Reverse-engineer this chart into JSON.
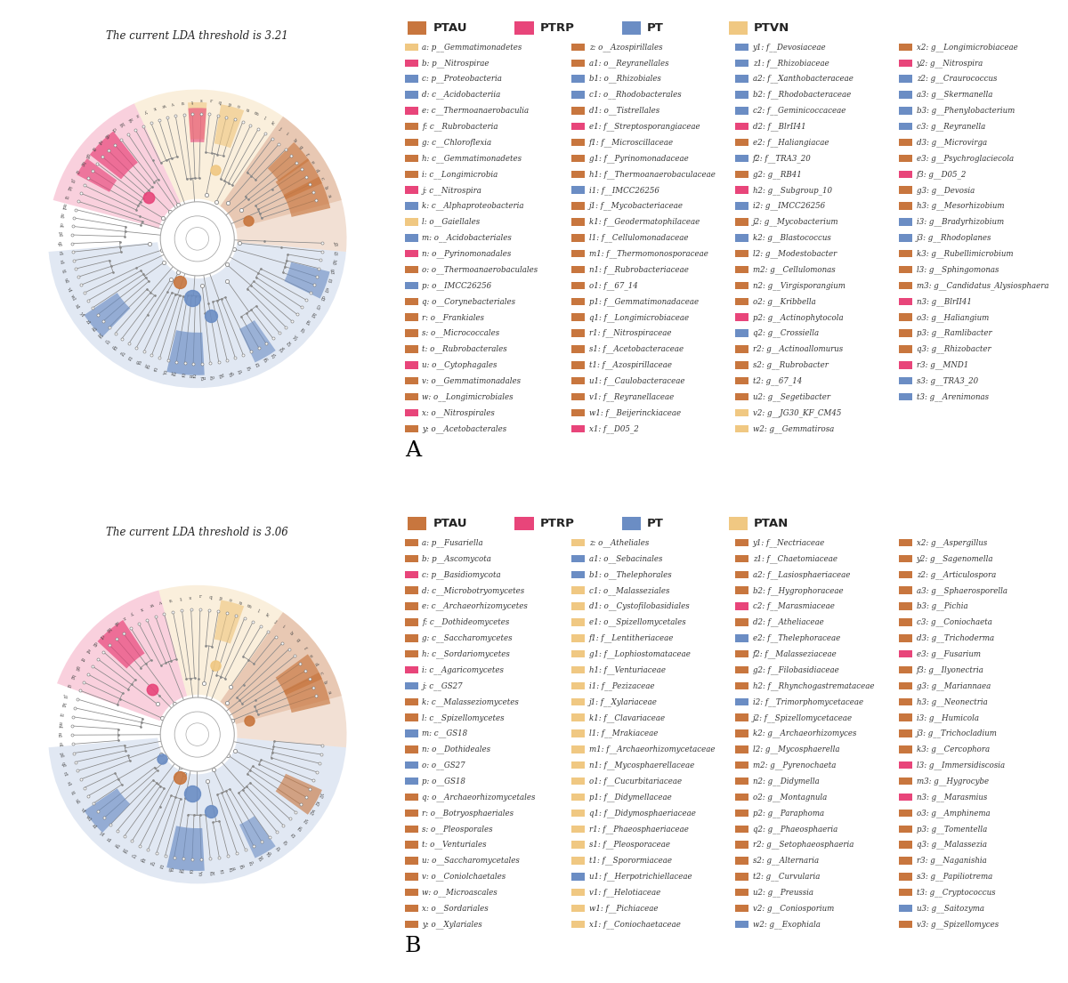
{
  "panel_A_title": "The current LDA threshold is 3.21",
  "panel_B_title": "The current LDA threshold is 3.06",
  "legend_A": {
    "groups": [
      "PTAU",
      "PTRP",
      "PT",
      "PTVN"
    ],
    "colors": [
      "#C8763E",
      "#E8457A",
      "#6B8DC4",
      "#F0C882"
    ],
    "col1": [
      [
        "#F0C882",
        "a: p__Gemmatimonadetes"
      ],
      [
        "#E8457A",
        "b: p__Nitrospirae"
      ],
      [
        "#6B8DC4",
        "c: p__Proteobacteria"
      ],
      [
        "#6B8DC4",
        "d: c__Acidobacteriia"
      ],
      [
        "#E8457A",
        "e: c__Thermoanaerobaculia"
      ],
      [
        "#C8763E",
        "f: c__Rubrobacteria"
      ],
      [
        "#C8763E",
        "g: c__Chloroflexia"
      ],
      [
        "#C8763E",
        "h: c__Gemmatimonadetes"
      ],
      [
        "#C8763E",
        "i: c__Longimicrobia"
      ],
      [
        "#E8457A",
        "j: c__Nitrospira"
      ],
      [
        "#6B8DC4",
        "k: c__Alphaproteobacteria"
      ],
      [
        "#F0C882",
        "l: o__Gaiellales"
      ],
      [
        "#6B8DC4",
        "m: o__Acidobacteriales"
      ],
      [
        "#E8457A",
        "n: o__Pyrinomonadales"
      ],
      [
        "#C8763E",
        "o: o__Thermoanaerobaculales"
      ],
      [
        "#6B8DC4",
        "p: o__IMCC26256"
      ],
      [
        "#C8763E",
        "q: o__Corynebacteriales"
      ],
      [
        "#C8763E",
        "r: o__Frankiales"
      ],
      [
        "#C8763E",
        "s: o__Micrococcales"
      ],
      [
        "#C8763E",
        "t: o__Rubrobacterales"
      ],
      [
        "#E8457A",
        "u: o__Cytophagales"
      ],
      [
        "#C8763E",
        "v: o__Gemmatimonadales"
      ],
      [
        "#C8763E",
        "w: o__Longimicrobiales"
      ],
      [
        "#E8457A",
        "x: o__Nitrospirales"
      ],
      [
        "#C8763E",
        "y: o__Acetobacterales"
      ]
    ],
    "col2": [
      [
        "#C8763E",
        "z: o__Azospirillales"
      ],
      [
        "#C8763E",
        "a1: o__Reyranellales"
      ],
      [
        "#6B8DC4",
        "b1: o__Rhizobiales"
      ],
      [
        "#6B8DC4",
        "c1: o__Rhodobacterales"
      ],
      [
        "#C8763E",
        "d1: o__Tistrellales"
      ],
      [
        "#E8457A",
        "e1: f__Streptosporangiaceae"
      ],
      [
        "#C8763E",
        "f1: f__Microscillaceae"
      ],
      [
        "#C8763E",
        "g1: f__Pyrinomonadaceae"
      ],
      [
        "#C8763E",
        "h1: f__Thermoanaerobaculaceae"
      ],
      [
        "#6B8DC4",
        "i1: f__IMCC26256"
      ],
      [
        "#C8763E",
        "j1: f__Mycobacteriaceae"
      ],
      [
        "#C8763E",
        "k1: f__Geodermatophilaceae"
      ],
      [
        "#C8763E",
        "l1: f__Cellulomonadaceae"
      ],
      [
        "#C8763E",
        "m1: f__Thermomonosporaceae"
      ],
      [
        "#C8763E",
        "n1: f__Rubrobacteriaceae"
      ],
      [
        "#C8763E",
        "o1: f__67_14"
      ],
      [
        "#C8763E",
        "p1: f__Gemmatimonadaceae"
      ],
      [
        "#C8763E",
        "q1: f__Longimicrobiaceae"
      ],
      [
        "#C8763E",
        "r1: f__Nitrospiraceae"
      ],
      [
        "#C8763E",
        "s1: f__Acetobacteraceae"
      ],
      [
        "#C8763E",
        "t1: f__Azospirillaceae"
      ],
      [
        "#C8763E",
        "u1: f__Caulobacteraceae"
      ],
      [
        "#C8763E",
        "v1: f__Reyranellaceae"
      ],
      [
        "#C8763E",
        "w1: f__Beijerinckiaceae"
      ],
      [
        "#E8457A",
        "x1: f__D05_2"
      ]
    ],
    "col3": [
      [
        "#6B8DC4",
        "y1: f__Devosiaceae"
      ],
      [
        "#6B8DC4",
        "z1: f__Rhizobiaceae"
      ],
      [
        "#6B8DC4",
        "a2: f__Xanthobacteraceae"
      ],
      [
        "#6B8DC4",
        "b2: f__Rhodobacteraceae"
      ],
      [
        "#6B8DC4",
        "c2: f__Geminicoccaceae"
      ],
      [
        "#E8457A",
        "d2: f__BlrII41"
      ],
      [
        "#C8763E",
        "e2: f__Haliangiacae"
      ],
      [
        "#6B8DC4",
        "f2: f__TRA3_20"
      ],
      [
        "#C8763E",
        "g2: g__RB41"
      ],
      [
        "#E8457A",
        "h2: g__Subgroup_10"
      ],
      [
        "#6B8DC4",
        "i2: g__IMCC26256"
      ],
      [
        "#C8763E",
        "j2: g__Mycobacterium"
      ],
      [
        "#6B8DC4",
        "k2: g__Blastococcus"
      ],
      [
        "#C8763E",
        "l2: g__Modestobacter"
      ],
      [
        "#C8763E",
        "m2: g__Cellulomonas"
      ],
      [
        "#C8763E",
        "n2: g__Virgisporangium"
      ],
      [
        "#C8763E",
        "o2: g__Kribbella"
      ],
      [
        "#E8457A",
        "p2: g__Actinophytocola"
      ],
      [
        "#6B8DC4",
        "q2: g__Crossiella"
      ],
      [
        "#C8763E",
        "r2: g__Actinoallomurus"
      ],
      [
        "#C8763E",
        "s2: g__Rubrobacter"
      ],
      [
        "#C8763E",
        "t2: g__67_14"
      ],
      [
        "#C8763E",
        "u2: g__Segetibacter"
      ],
      [
        "#F0C882",
        "v2: g__JG30_KF_CM45"
      ],
      [
        "#F0C882",
        "w2: g__Gemmatirosa"
      ]
    ],
    "col4": [
      [
        "#C8763E",
        "x2: g__Longimicrobiaceae"
      ],
      [
        "#E8457A",
        "y2: g__Nitrospira"
      ],
      [
        "#6B8DC4",
        "z2: g__Craurococcus"
      ],
      [
        "#6B8DC4",
        "a3: g__Skermanella"
      ],
      [
        "#6B8DC4",
        "b3: g__Phenylobacterium"
      ],
      [
        "#6B8DC4",
        "c3: g__Reyranella"
      ],
      [
        "#C8763E",
        "d3: g__Microvirga"
      ],
      [
        "#C8763E",
        "e3: g__Psychroglaciecola"
      ],
      [
        "#E8457A",
        "f3: g__D05_2"
      ],
      [
        "#C8763E",
        "g3: g__Devosia"
      ],
      [
        "#C8763E",
        "h3: g__Mesorhizobium"
      ],
      [
        "#6B8DC4",
        "i3: g__Bradyrhizobium"
      ],
      [
        "#6B8DC4",
        "j3: g__Rhodoplanes"
      ],
      [
        "#C8763E",
        "k3: g__Rubellimicrobium"
      ],
      [
        "#C8763E",
        "l3: g__Sphingomonas"
      ],
      [
        "#C8763E",
        "m3: g__Candidatus_Alysiosphaera"
      ],
      [
        "#E8457A",
        "n3: g__BlrII41"
      ],
      [
        "#C8763E",
        "o3: g__Haliangium"
      ],
      [
        "#C8763E",
        "p3: g__Ramlibacter"
      ],
      [
        "#C8763E",
        "q3: g__Rhizobacter"
      ],
      [
        "#E8457A",
        "r3: g__MND1"
      ],
      [
        "#6B8DC4",
        "s3: g__TRA3_20"
      ],
      [
        "#6B8DC4",
        "t3: g__Arenimonas"
      ]
    ]
  },
  "legend_B": {
    "groups": [
      "PTAU",
      "PTRP",
      "PT",
      "PTAN"
    ],
    "colors": [
      "#C8763E",
      "#E8457A",
      "#6B8DC4",
      "#F0C882"
    ],
    "col1": [
      [
        "#C8763E",
        "a: p__Fusariella"
      ],
      [
        "#C8763E",
        "b: p__Ascomycota"
      ],
      [
        "#E8457A",
        "c: p__Basidiomycota"
      ],
      [
        "#C8763E",
        "d: c__Microbotryomycetes"
      ],
      [
        "#C8763E",
        "e: c__Archaeorhizomycetes"
      ],
      [
        "#C8763E",
        "f: c__Dothideomycetes"
      ],
      [
        "#C8763E",
        "g: c__Saccharomycetes"
      ],
      [
        "#C8763E",
        "h: c__Sordariomycetes"
      ],
      [
        "#E8457A",
        "i: c__Agaricomycetes"
      ],
      [
        "#6B8DC4",
        "j: c__GS27"
      ],
      [
        "#C8763E",
        "k: c__Malasseziomycetes"
      ],
      [
        "#C8763E",
        "l: c__Spizellomycetes"
      ],
      [
        "#6B8DC4",
        "m: c__GS18"
      ],
      [
        "#C8763E",
        "n: o__Dothideales"
      ],
      [
        "#6B8DC4",
        "o: o__GS27"
      ],
      [
        "#6B8DC4",
        "p: o__GS18"
      ],
      [
        "#C8763E",
        "q: o__Archaeorhizomycetales"
      ],
      [
        "#C8763E",
        "r: o__Botryosphaeriales"
      ],
      [
        "#C8763E",
        "s: o__Pleosporales"
      ],
      [
        "#C8763E",
        "t: o__Venturiales"
      ],
      [
        "#C8763E",
        "u: o__Saccharomycetales"
      ],
      [
        "#C8763E",
        "v: o__Coniolchaetales"
      ],
      [
        "#C8763E",
        "w: o__Microascales"
      ],
      [
        "#C8763E",
        "x: o__Sordariales"
      ],
      [
        "#C8763E",
        "y: o__Xylariales"
      ]
    ],
    "col2": [
      [
        "#F0C882",
        "z: o__Atheliales"
      ],
      [
        "#6B8DC4",
        "a1: o__Sebacinales"
      ],
      [
        "#6B8DC4",
        "b1: o__Thelephorales"
      ],
      [
        "#F0C882",
        "c1: o__Malasseziales"
      ],
      [
        "#F0C882",
        "d1: o__Cystofilobasidiales"
      ],
      [
        "#F0C882",
        "e1: o__Spizellomycetales"
      ],
      [
        "#F0C882",
        "f1: f__Lentitheriaceae"
      ],
      [
        "#F0C882",
        "g1: f__Lophiostomataceae"
      ],
      [
        "#F0C882",
        "h1: f__Venturiaceae"
      ],
      [
        "#F0C882",
        "i1: f__Pezizaceae"
      ],
      [
        "#F0C882",
        "j1: f__Xylariaceae"
      ],
      [
        "#F0C882",
        "k1: f__Clavariaceae"
      ],
      [
        "#F0C882",
        "l1: f__Mrakiaceae"
      ],
      [
        "#F0C882",
        "m1: f__Archaeorhizomycetaceae"
      ],
      [
        "#F0C882",
        "n1: f__Mycosphaerellaceae"
      ],
      [
        "#F0C882",
        "o1: f__Cucurbitariaceae"
      ],
      [
        "#F0C882",
        "p1: f__Didymellaceae"
      ],
      [
        "#F0C882",
        "q1: f__Didymosphaeriaceae"
      ],
      [
        "#F0C882",
        "r1: f__Phaeosphaeriaceae"
      ],
      [
        "#F0C882",
        "s1: f__Pleosporaceae"
      ],
      [
        "#F0C882",
        "t1: f__Sporormiaceae"
      ],
      [
        "#6B8DC4",
        "u1: f__Herpotrichiellaceae"
      ],
      [
        "#F0C882",
        "v1: f__Helotiaceae"
      ],
      [
        "#F0C882",
        "w1: f__Pichiaceae"
      ],
      [
        "#F0C882",
        "x1: f__Coniochaetaceae"
      ]
    ],
    "col3": [
      [
        "#C8763E",
        "y1: f__Nectriaceae"
      ],
      [
        "#C8763E",
        "z1: f__Chaetomiaceae"
      ],
      [
        "#C8763E",
        "a2: f__Lasiosphaeriaceae"
      ],
      [
        "#C8763E",
        "b2: f__Hygrophoraceae"
      ],
      [
        "#E8457A",
        "c2: f__Marasmiaceae"
      ],
      [
        "#C8763E",
        "d2: f__Atheliaceae"
      ],
      [
        "#6B8DC4",
        "e2: f__Thelephoraceae"
      ],
      [
        "#C8763E",
        "f2: f__Malasseziaceae"
      ],
      [
        "#C8763E",
        "g2: f__Filobasidiaceae"
      ],
      [
        "#C8763E",
        "h2: f__Rhynchogastremataceae"
      ],
      [
        "#6B8DC4",
        "i2: f__Trimorphomycetaceae"
      ],
      [
        "#C8763E",
        "j2: f__Spizellomycetaceae"
      ],
      [
        "#C8763E",
        "k2: g__Archaeorhizomyces"
      ],
      [
        "#C8763E",
        "l2: g__Mycosphaerella"
      ],
      [
        "#C8763E",
        "m2: g__Pyrenochaeta"
      ],
      [
        "#C8763E",
        "n2: g__Didymella"
      ],
      [
        "#C8763E",
        "o2: g__Montagnula"
      ],
      [
        "#C8763E",
        "p2: g__Paraphoma"
      ],
      [
        "#C8763E",
        "q2: g__Phaeosphaeria"
      ],
      [
        "#C8763E",
        "r2: g__Setophaeosphaeria"
      ],
      [
        "#C8763E",
        "s2: g__Alternaria"
      ],
      [
        "#C8763E",
        "t2: g__Curvularia"
      ],
      [
        "#C8763E",
        "u2: g__Preussia"
      ],
      [
        "#C8763E",
        "v2: g__Coniosporium"
      ],
      [
        "#6B8DC4",
        "w2: g__Exophiala"
      ]
    ],
    "col4": [
      [
        "#C8763E",
        "x2: g__Aspergillus"
      ],
      [
        "#C8763E",
        "y2: g__Sagenomella"
      ],
      [
        "#C8763E",
        "z2: g__Articulospora"
      ],
      [
        "#C8763E",
        "a3: g__Sphaerosporella"
      ],
      [
        "#C8763E",
        "b3: g__Pichia"
      ],
      [
        "#C8763E",
        "c3: g__Coniochaeta"
      ],
      [
        "#C8763E",
        "d3: g__Trichoderma"
      ],
      [
        "#E8457A",
        "e3: g__Fusarium"
      ],
      [
        "#C8763E",
        "f3: g__Ilyonectria"
      ],
      [
        "#C8763E",
        "g3: g__Mariannaea"
      ],
      [
        "#C8763E",
        "h3: g__Neonectria"
      ],
      [
        "#C8763E",
        "i3: g__Humicola"
      ],
      [
        "#C8763E",
        "j3: g__Trichocladium"
      ],
      [
        "#C8763E",
        "k3: g__Cercophora"
      ],
      [
        "#E8457A",
        "l3: g__Immersidiscosia"
      ],
      [
        "#C8763E",
        "m3: g__Hygrocybe"
      ],
      [
        "#E8457A",
        "n3: g__Marasmius"
      ],
      [
        "#C8763E",
        "o3: g__Amphinema"
      ],
      [
        "#C8763E",
        "p3: g__Tomentella"
      ],
      [
        "#C8763E",
        "q3: g__Malassezia"
      ],
      [
        "#C8763E",
        "r3: g__Naganishia"
      ],
      [
        "#C8763E",
        "s3: g__Papiliotrema"
      ],
      [
        "#C8763E",
        "t3: g__Cryptococcus"
      ],
      [
        "#6B8DC4",
        "u3: g__Saitozyma"
      ],
      [
        "#C8763E",
        "v3: g__Spizellomyces"
      ]
    ]
  }
}
